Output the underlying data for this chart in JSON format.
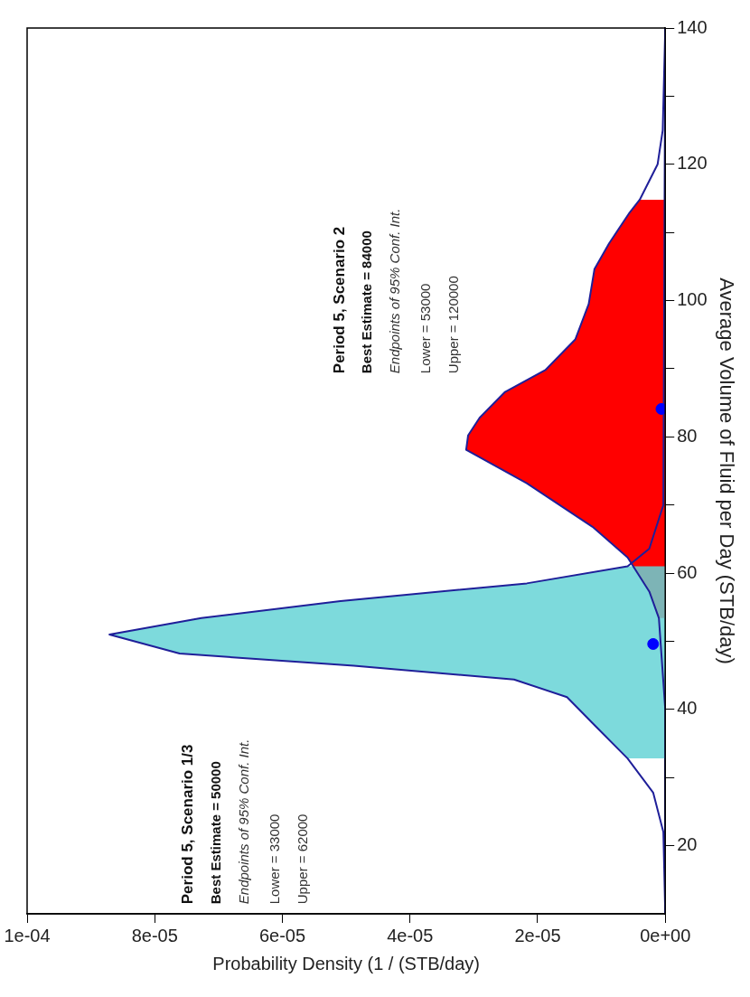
{
  "chart_data": {
    "type": "area",
    "xlabel": "Probability Density (1 / (STB/day)",
    "ylabel": "Average Volume of Fluid per Day (STB/day)",
    "xlim": [
      0.0001,
      0
    ],
    "xticks": [
      {
        "value": 0,
        "label": "0e+00"
      },
      {
        "value": 2e-05,
        "label": "2e-05"
      },
      {
        "value": 4e-05,
        "label": "4e-05"
      },
      {
        "value": 6e-05,
        "label": "6e-05"
      },
      {
        "value": 8e-05,
        "label": "8e-05"
      },
      {
        "value": 0.0001,
        "label": "1e-04"
      }
    ],
    "ylim": [
      10,
      140
    ],
    "yticks": [
      20,
      {
        "value": 30,
        "label": null
      },
      40,
      {
        "value": 50,
        "label": null
      },
      60,
      {
        "value": 70,
        "label": null
      },
      80,
      {
        "value": 90,
        "label": null
      },
      100,
      {
        "value": 110,
        "label": null
      },
      120,
      {
        "value": 130,
        "label": null
      },
      140
    ],
    "series": [
      {
        "color": "#ff0000",
        "values": [
          53.4,
          53.4,
          57.3,
          62.3,
          66.8,
          73.2,
          78.1,
          80.2,
          82.8,
          86.6,
          89.8,
          94.3,
          99.5,
          104.6,
          108.4,
          112.9,
          114.8,
          114.8
        ],
        "x": [
          0,
          1e-06,
          2.5e-06,
          5.9e-06,
          1.14e-05,
          2.17e-05,
          3.12e-05,
          3.09e-05,
          2.91e-05,
          2.51e-05,
          1.88e-05,
          1.41e-05,
          1.2e-05,
          1.11e-05,
          8.8e-06,
          5.6e-06,
          4e-06,
          0
        ]
      },
      {
        "color": "#66d4d6",
        "values": [
          32.8,
          32.8,
          38,
          41.8,
          44.4,
          46.4,
          48.2,
          51,
          53.4,
          55.9,
          58.5,
          61,
          61
        ],
        "x": [
          0,
          5.9e-06,
          1.14e-05,
          1.54e-05,
          2.37e-05,
          4.88e-05,
          7.61e-05,
          8.71e-05,
          7.27e-05,
          5.09e-05,
          2.17e-05,
          5.9e-06,
          0
        ]
      },
      {
        "type": "line",
        "color": "#1f1f99",
        "values": [
          10,
          40,
          53.4,
          57.3,
          62.3,
          66.8,
          73.2,
          78.1,
          80.2,
          82.8,
          86.6,
          89.8,
          94.3,
          99.5,
          104.6,
          108.4,
          112.9,
          114.8,
          120,
          125,
          140
        ],
        "x": [
          0,
          0,
          1e-06,
          2.5e-06,
          5.9e-06,
          1.14e-05,
          2.17e-05,
          3.12e-05,
          3.09e-05,
          2.91e-05,
          2.51e-05,
          1.88e-05,
          1.41e-05,
          1.2e-05,
          1.11e-05,
          8.8e-06,
          5.6e-06,
          4e-06,
          1.2e-06,
          4e-07,
          0
        ]
      },
      {
        "type": "line",
        "color": "#1f1f99",
        "values": [
          10,
          22,
          27.8,
          32.8,
          38,
          41.8,
          44.4,
          46.4,
          48.2,
          51,
          53.4,
          55.9,
          58.5,
          61,
          63.6,
          70,
          140
        ],
        "x": [
          0,
          3e-07,
          1.9e-06,
          5.9e-06,
          1.14e-05,
          1.54e-05,
          2.37e-05,
          4.88e-05,
          7.61e-05,
          8.71e-05,
          7.27e-05,
          5.09e-05,
          2.17e-05,
          5.9e-06,
          2.5e-06,
          3e-07,
          0
        ]
      },
      {
        "type": "scatter",
        "color": "#0000ff",
        "marker": "circle",
        "values": [
          49.6,
          84.1
        ],
        "x": [
          1.9e-06,
          6e-07
        ]
      }
    ],
    "annotations": [
      "Period 5, Scenario 2",
      "Best Estimate = 84000",
      "Endpoints of 95% Conf. Int.",
      "Lower = 53000",
      "Upper = 120000",
      "Period 5, Scenario 1/3",
      "Best Estimate = 50000",
      "Endpoints of 95% Conf. Int.",
      "Lower = 33000",
      "Upper = 62000"
    ]
  }
}
